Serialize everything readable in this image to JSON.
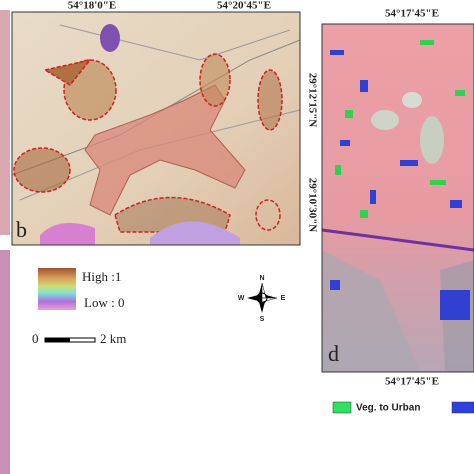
{
  "panel_b": {
    "label": "b",
    "x_labels": [
      "54°18'0\"E",
      "54°20'45\"E"
    ],
    "y_labels": [
      "29°12'15\"N",
      "29°10'30\"N"
    ]
  },
  "panel_d": {
    "label": "d",
    "top_label": "54°17'45\"E",
    "bottom_label": "54°17'45\"E"
  },
  "legend": {
    "high": "High :1",
    "low": "Low : 0",
    "items": [
      "Veg. to Urban"
    ]
  },
  "scale_bar": {
    "start": "0",
    "end": "2 km"
  },
  "compass": {
    "n": "N",
    "e": "E",
    "s": "S",
    "w": "W"
  }
}
